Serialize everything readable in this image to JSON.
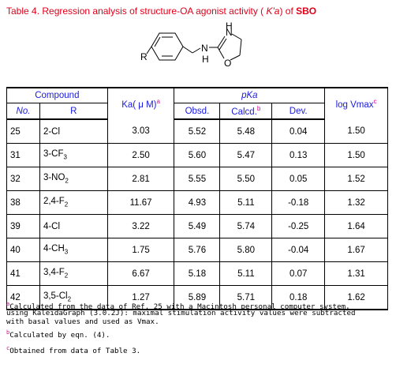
{
  "caption": {
    "prefix": "Table 4.  Regression analysis of structure-OA agonist activity ( ",
    "ka": "K'a",
    "mid": ") of ",
    "compound": "SBO"
  },
  "structure": {
    "r_label": "R",
    "nh_label": "N",
    "h_label": "H",
    "n_label": "N",
    "o_label": "O",
    "ring_h": "H"
  },
  "table": {
    "headers": {
      "compound": "Compound",
      "no": "No.",
      "r": "R",
      "ka": "Ka( μ M)",
      "ka_mark": "a",
      "pka": "pKa",
      "obsd": "Obsd.",
      "calcd": "Calcd.",
      "calcd_mark": "b",
      "dev": "Dev.",
      "logv": "log Vmax",
      "logv_mark": "c"
    },
    "rows": [
      {
        "no": "25",
        "r_main": "2-Cl",
        "r_sub": "",
        "r_tail": "",
        "ka": "3.03",
        "obsd": "5.52",
        "calcd": "5.48",
        "dev": "0.04",
        "logv": "1.50"
      },
      {
        "no": "31",
        "r_main": "3-CF",
        "r_sub": "3",
        "r_tail": "",
        "ka": "2.50",
        "obsd": "5.60",
        "calcd": "5.47",
        "dev": "0.13",
        "logv": "1.50"
      },
      {
        "no": "32",
        "r_main": "3-NO",
        "r_sub": "2",
        "r_tail": "",
        "ka": "2.81",
        "obsd": "5.55",
        "calcd": "5.50",
        "dev": "0.05",
        "logv": "1.52"
      },
      {
        "no": "38",
        "r_main": "2,4-F",
        "r_sub": "2",
        "r_tail": "",
        "ka": "11.67",
        "obsd": "4.93",
        "calcd": "5.11",
        "dev": "-0.18",
        "logv": "1.32"
      },
      {
        "no": "39",
        "r_main": "4-Cl",
        "r_sub": "",
        "r_tail": "",
        "ka": "3.22",
        "obsd": "5.49",
        "calcd": "5.74",
        "dev": "-0.25",
        "logv": "1.64"
      },
      {
        "no": "40",
        "r_main": "4-CH",
        "r_sub": "3",
        "r_tail": "",
        "ka": "1.75",
        "obsd": "5.76",
        "calcd": "5.80",
        "dev": "-0.04",
        "logv": "1.67"
      },
      {
        "no": "41",
        "r_main": "3,4-F",
        "r_sub": "2",
        "r_tail": "",
        "ka": "6.67",
        "obsd": "5.18",
        "calcd": "5.11",
        "dev": "0.07",
        "logv": "1.31"
      },
      {
        "no": "42",
        "r_main": "3,5-Cl",
        "r_sub": "2",
        "r_tail": "",
        "ka": "1.27",
        "obsd": "5.89",
        "calcd": "5.71",
        "dev": "0.18",
        "logv": "1.62"
      }
    ]
  },
  "footnotes": {
    "a_mark": "a",
    "a_line1": "Calculated from the data of Ref. 25 with a Macintosh personal computer system,",
    "a_line2": "using KaleidaGraph (3.0.2J): maximal stimulation activity values were subtracted",
    "a_line3": "with basal values and used as Vmax.",
    "b_mark": "b",
    "b_text": "Calculated by eqn. (4).",
    "c_mark": "c",
    "c_text": "Obtained from data of Table 3."
  },
  "colors": {
    "caption": "#e0001a",
    "header": "#1a1ae0",
    "mark": "#e000a0"
  }
}
